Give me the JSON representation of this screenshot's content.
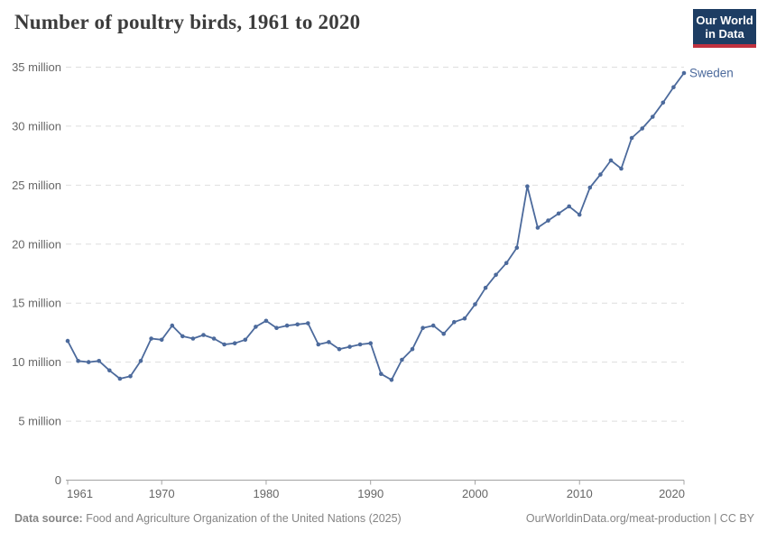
{
  "header": {
    "title": "Number of poultry birds, 1961 to 2020",
    "logo": {
      "line1": "Our World",
      "line2": "in Data",
      "background_color": "#1d3d63",
      "accent_color": "#c0313f",
      "text_color": "#ffffff"
    }
  },
  "chart_data": {
    "type": "line",
    "title": "Number of poultry birds, 1961 to 2020",
    "xlabel": "",
    "ylabel": "",
    "unit_label": "million",
    "xlim": [
      1961,
      2020
    ],
    "ylim": [
      0,
      35
    ],
    "grid": "horizontal-dashed",
    "legend_position": "end-of-line-label",
    "x_ticks": [
      1961,
      1970,
      1980,
      1990,
      2000,
      2010,
      2020
    ],
    "y_ticks": [
      {
        "v": 0,
        "label": "0"
      },
      {
        "v": 5,
        "label": "5 million"
      },
      {
        "v": 10,
        "label": "10 million"
      },
      {
        "v": 15,
        "label": "15 million"
      },
      {
        "v": 20,
        "label": "20 million"
      },
      {
        "v": 25,
        "label": "25 million"
      },
      {
        "v": 30,
        "label": "30 million"
      },
      {
        "v": 35,
        "label": "35 million"
      }
    ],
    "series": [
      {
        "name": "Sweden",
        "color": "#4C6A9C",
        "x": [
          1961,
          1962,
          1963,
          1964,
          1965,
          1966,
          1967,
          1968,
          1969,
          1970,
          1971,
          1972,
          1973,
          1974,
          1975,
          1976,
          1977,
          1978,
          1979,
          1980,
          1981,
          1982,
          1983,
          1984,
          1985,
          1986,
          1987,
          1988,
          1989,
          1990,
          1991,
          1992,
          1993,
          1994,
          1995,
          1996,
          1997,
          1998,
          1999,
          2000,
          2001,
          2002,
          2003,
          2004,
          2005,
          2006,
          2007,
          2008,
          2009,
          2010,
          2011,
          2012,
          2013,
          2014,
          2015,
          2016,
          2017,
          2018,
          2019,
          2020
        ],
        "values": [
          11.8,
          10.1,
          10.0,
          10.1,
          9.3,
          8.6,
          8.8,
          10.1,
          12.0,
          11.9,
          13.1,
          12.2,
          12.0,
          12.3,
          12.0,
          11.5,
          11.6,
          11.9,
          13.0,
          13.5,
          12.9,
          13.1,
          13.2,
          13.3,
          11.5,
          11.7,
          11.1,
          11.3,
          11.5,
          11.6,
          9.0,
          8.5,
          10.2,
          11.1,
          12.9,
          13.1,
          12.4,
          13.4,
          13.7,
          14.9,
          16.3,
          17.4,
          18.4,
          19.7,
          24.9,
          21.4,
          22.0,
          22.6,
          23.2,
          22.5,
          24.8,
          25.9,
          27.1,
          26.4,
          29.0,
          29.8,
          30.8,
          32.0,
          33.3,
          34.5
        ]
      }
    ],
    "colors": {
      "gridline": "#dedede",
      "axis": "#a3a3a3",
      "tick_label": "#666666"
    }
  },
  "footer": {
    "source_label": "Data source:",
    "source_text": " Food and Agriculture Organization of the United Nations (2025)",
    "link_text": "OurWorldinData.org/meat-production",
    "separator": " | ",
    "license_text": "CC BY"
  }
}
